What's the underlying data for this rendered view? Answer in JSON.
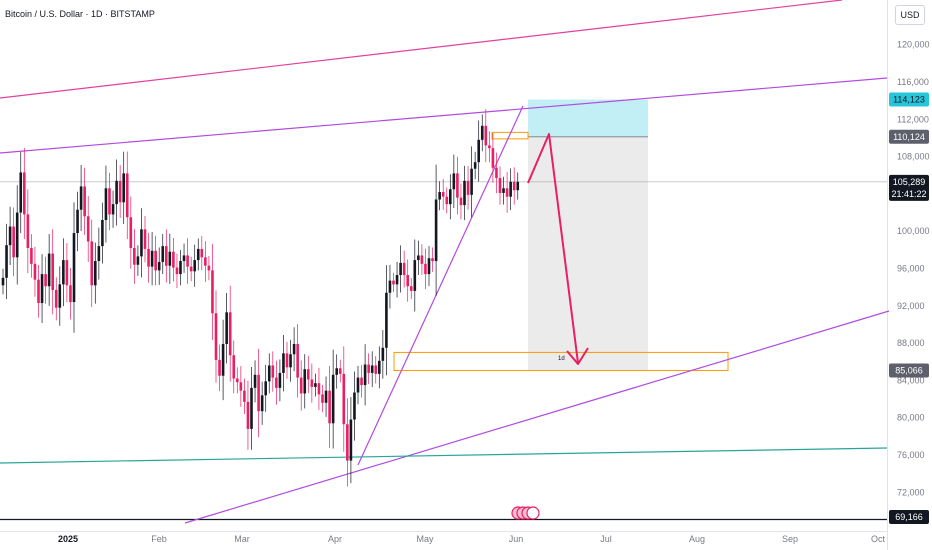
{
  "header": {
    "title": "Bitcoin / U.S. Dollar · 1D · BITSTAMP",
    "currency_label": "USD"
  },
  "colors": {
    "up": "#131722",
    "down": "#e91e63",
    "channel_upper": "#e040a0",
    "channel_mid": "#b04ce0",
    "channel_lower": "#b04ce0",
    "support_line": "#26a69a",
    "target_zone": "#b2ebf2",
    "risk_zone": "#e8e8e8",
    "zone_outline": "#ff9800",
    "arrow": "#e91e63",
    "badge_target": "#26c6da",
    "badge_dark": "#131722",
    "badge_gray": "#5d606b"
  },
  "chart_data": {
    "type": "candlestick",
    "symbol": "BTCUSD",
    "exchange": "BITSTAMP",
    "interval": "1D",
    "y_axis": {
      "min": 69166,
      "max": 124000,
      "ticks": [
        120000,
        116000,
        112000,
        108000,
        100000,
        96000,
        92000,
        88000,
        84000,
        80000,
        76000,
        72000
      ]
    },
    "x_axis": {
      "ticks": [
        {
          "label": "2025",
          "bold": true
        },
        {
          "label": "Feb",
          "bold": false
        },
        {
          "label": "Mar",
          "bold": false
        },
        {
          "label": "Apr",
          "bold": false
        },
        {
          "label": "May",
          "bold": false
        },
        {
          "label": "Jun",
          "bold": false
        },
        {
          "label": "Jul",
          "bold": false
        },
        {
          "label": "Aug",
          "bold": false
        },
        {
          "label": "Sep",
          "bold": false
        },
        {
          "label": "Oct",
          "bold": false
        }
      ]
    },
    "price_badges": [
      {
        "value": "114,123",
        "kind": "target"
      },
      {
        "value": "110,124",
        "kind": "gray"
      },
      {
        "value": "105,289",
        "kind": "dark",
        "sub": "21:41:22"
      },
      {
        "value": "85,066",
        "kind": "gray"
      },
      {
        "value": "69,166",
        "kind": "dark"
      }
    ],
    "current_price": 105289,
    "trade_setup": {
      "entry": 110124,
      "target_top": 114123,
      "stop_zone_bottom": 85066,
      "duration_label": "1d"
    },
    "closes": [
      95000,
      98500,
      100500,
      97200,
      102000,
      106300,
      101800,
      98200,
      96500,
      94800,
      92300,
      95400,
      94100,
      97600,
      93700,
      91800,
      94300,
      96900,
      94200,
      92400,
      99800,
      102300,
      104800,
      101600,
      98900,
      94200,
      96800,
      98400,
      101200,
      104600,
      101800,
      102900,
      105400,
      103100,
      106200,
      101500,
      98200,
      96400,
      97300,
      100200,
      98100,
      96200,
      97900,
      95800,
      96700,
      98400,
      96300,
      97800,
      96100,
      95400,
      96800,
      97400,
      96200,
      95700,
      96900,
      98100,
      97200,
      96300,
      95800,
      91200,
      86200,
      84500,
      87900,
      91300,
      86700,
      84200,
      83800,
      82900,
      81700,
      78800,
      83200,
      84600,
      80700,
      82400,
      83900,
      85600,
      84300,
      83200,
      84800,
      86900,
      85400,
      86800,
      87900,
      84300,
      82600,
      85200,
      84100,
      83300,
      83700,
      82500,
      81600,
      82900,
      79400,
      84600,
      85300,
      84700,
      79300,
      75400,
      79800,
      82700,
      84300,
      83500,
      85700,
      84800,
      85600,
      84700,
      86100,
      87500,
      93400,
      94700,
      94300,
      95300,
      96600,
      95300,
      94100,
      93600,
      96900,
      97400,
      96500,
      95400,
      97100,
      96800,
      103400,
      104200,
      103700,
      102900,
      104500,
      106200,
      103600,
      102800,
      105400,
      103900,
      106700,
      107400,
      109800,
      111300,
      109200,
      108900,
      106800,
      105700,
      104100,
      104600,
      103700,
      105300,
      104400,
      105289
    ]
  },
  "watermark": {
    "icon": "tradingview-logo-icon"
  }
}
